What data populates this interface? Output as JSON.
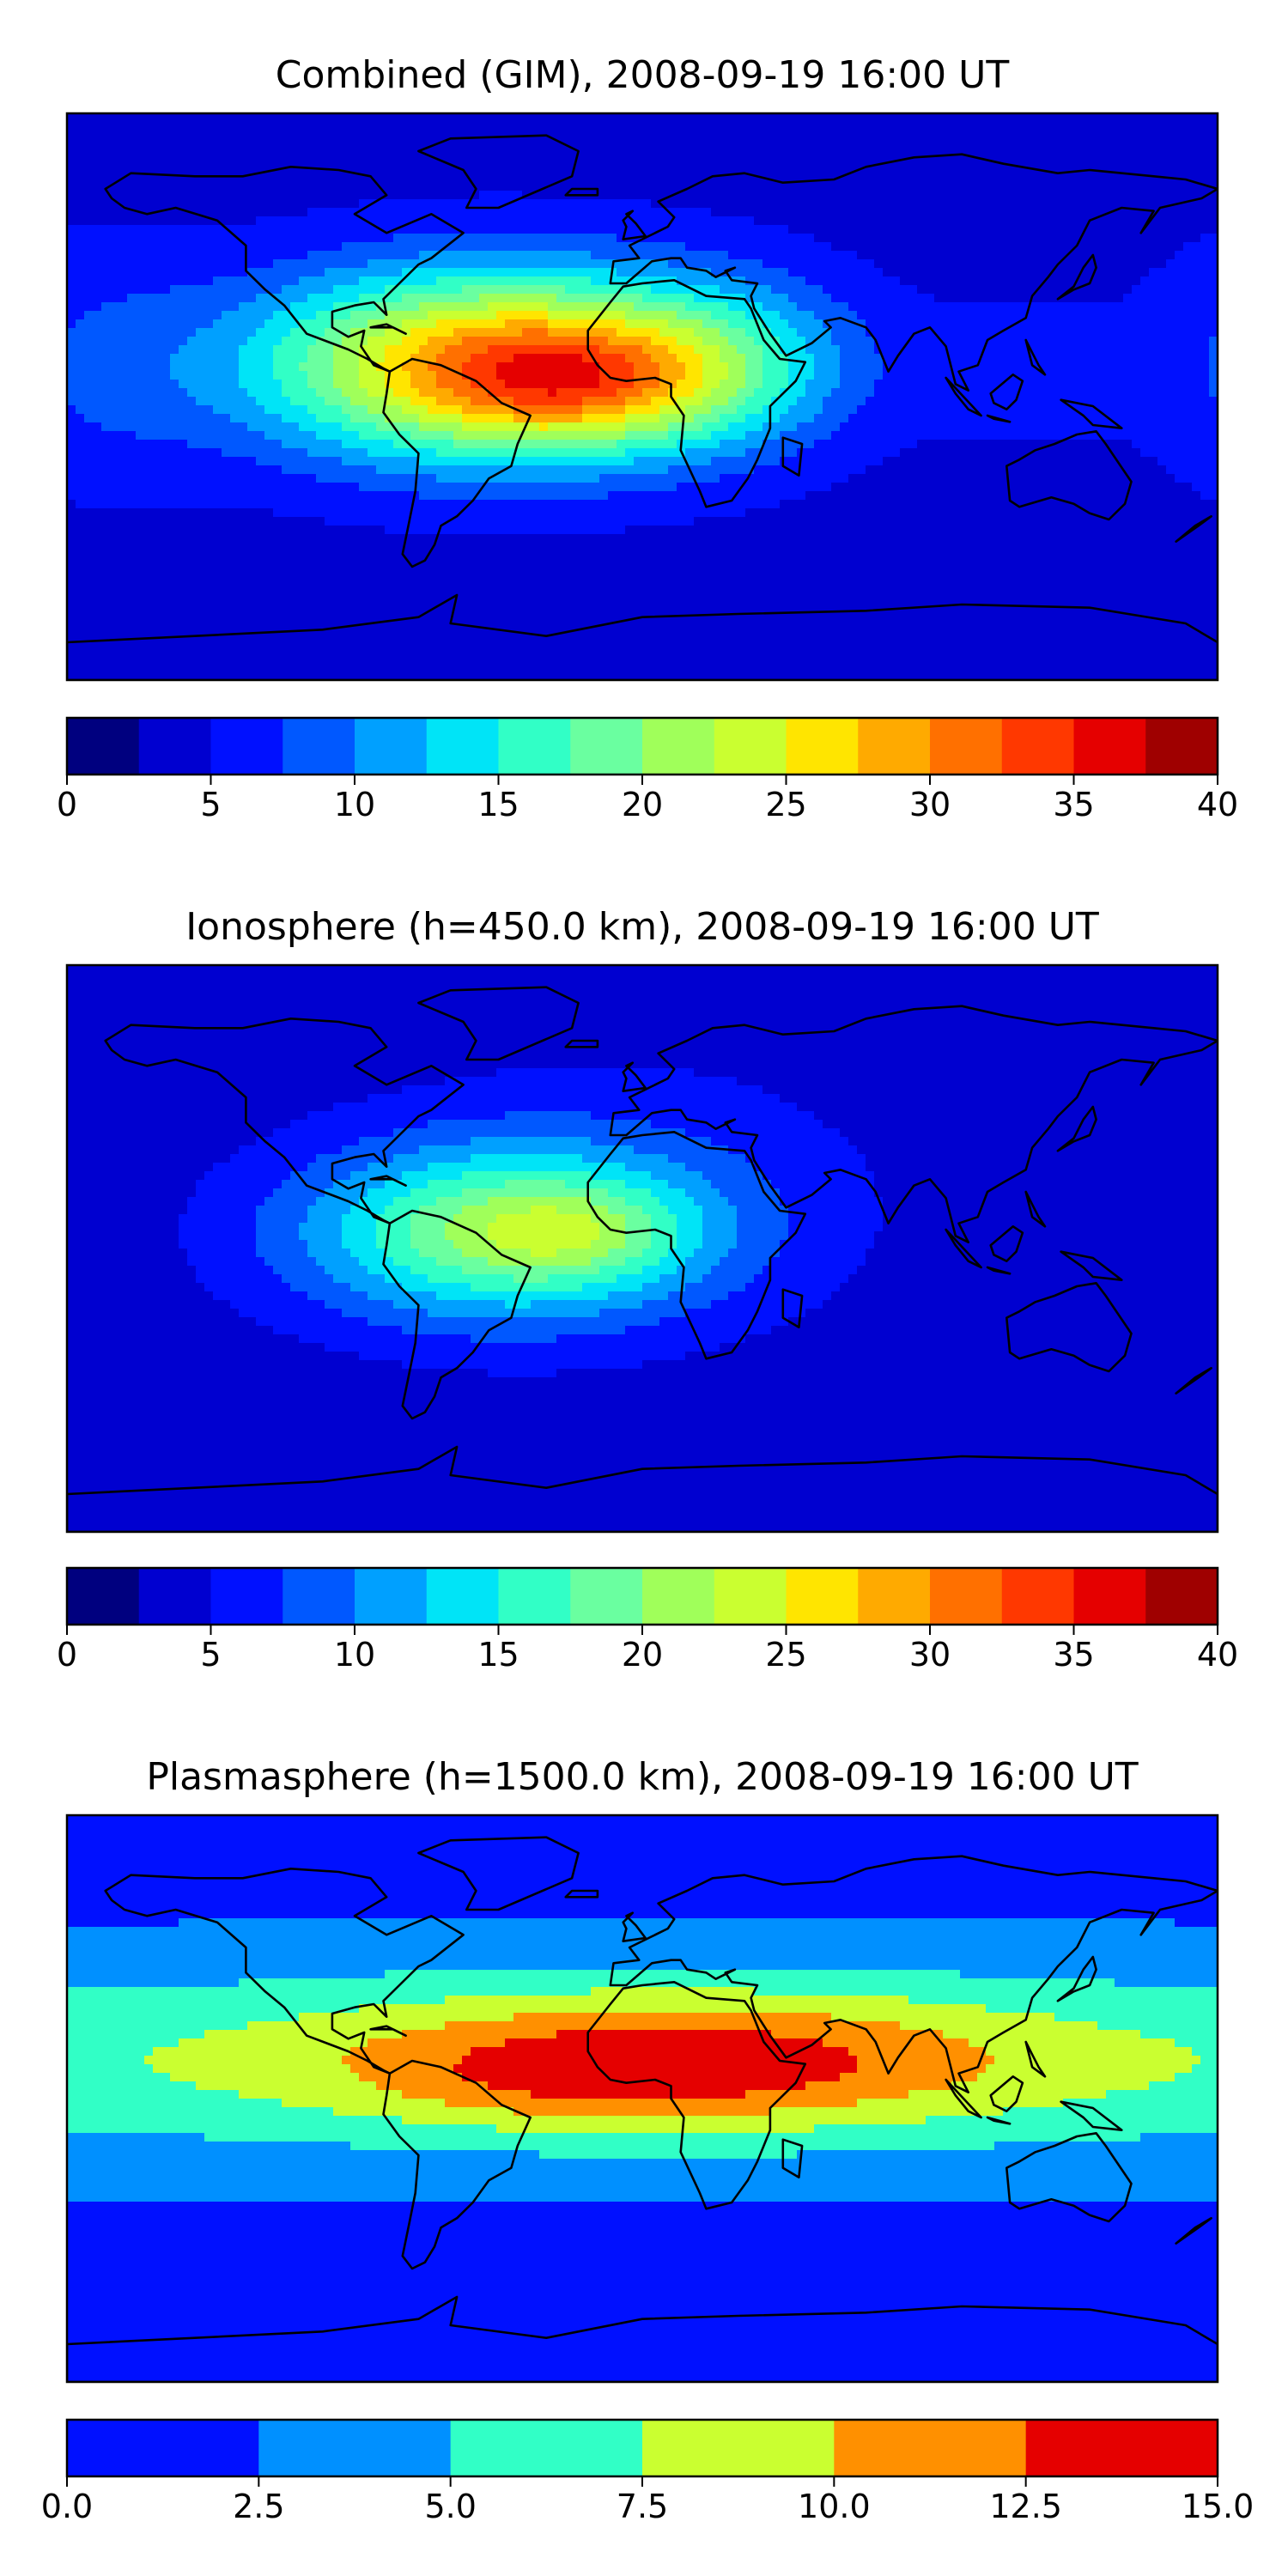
{
  "chart_data": [
    {
      "type": "heatmap",
      "title": "Combined (GIM), 2008-09-19 16:00 UT",
      "colorbar": {
        "levels": [
          0,
          2.5,
          5,
          7.5,
          10,
          12.5,
          15,
          17.5,
          20,
          22.5,
          25,
          27.5,
          30,
          32.5,
          35,
          37.5,
          40
        ],
        "ticks": [
          0,
          5,
          10,
          15,
          20,
          25,
          30,
          35,
          40
        ],
        "tick_labels": [
          "0",
          "5",
          "10",
          "15",
          "20",
          "25",
          "30",
          "35",
          "40"
        ],
        "colors": [
          "#00007f",
          "#0000d0",
          "#0010ff",
          "#0058ff",
          "#00a0ff",
          "#00e4f7",
          "#31ffc6",
          "#6affa0",
          "#a0ff5a",
          "#caff30",
          "#ffe500",
          "#ffaa00",
          "#ff7000",
          "#ff3800",
          "#e50000",
          "#9f0000"
        ]
      },
      "blobs": [
        {
          "lon": -45,
          "lat": 10,
          "value": 26,
          "sx": 75,
          "sy": 30
        },
        {
          "lon": -20,
          "lat": 4,
          "value": 8,
          "sx": 40,
          "sy": 18
        },
        {
          "lon": 25,
          "lat": 10,
          "value": 6,
          "sx": 38,
          "sy": 25
        },
        {
          "lon": 120,
          "lat": 8,
          "value": 3,
          "sx": 30,
          "sy": 20
        },
        {
          "lon": -170,
          "lat": 10,
          "value": 3,
          "sx": 35,
          "sy": 40
        }
      ],
      "background": 4
    },
    {
      "type": "heatmap",
      "title": "Ionosphere  (h=450.0 km), 2008-09-19 16:00 UT",
      "colorbar": {
        "levels": [
          0,
          2.5,
          5,
          7.5,
          10,
          12.5,
          15,
          17.5,
          20,
          22.5,
          25,
          27.5,
          30,
          32.5,
          35,
          37.5,
          40
        ],
        "ticks": [
          0,
          5,
          10,
          15,
          20,
          25,
          30,
          35,
          40
        ],
        "tick_labels": [
          "0",
          "5",
          "10",
          "15",
          "20",
          "25",
          "30",
          "35",
          "40"
        ],
        "colors": [
          "#00007f",
          "#0000d0",
          "#0010ff",
          "#0058ff",
          "#00a0ff",
          "#00e4f7",
          "#31ffc6",
          "#6affa0",
          "#a0ff5a",
          "#caff30",
          "#ffe500",
          "#ffaa00",
          "#ff7000",
          "#ff3800",
          "#e50000",
          "#9f0000"
        ]
      },
      "blobs": [
        {
          "lon": -45,
          "lat": 5,
          "value": 15,
          "sx": 65,
          "sy": 28
        },
        {
          "lon": -20,
          "lat": 5,
          "value": 5,
          "sx": 35,
          "sy": 15
        },
        {
          "lon": 0,
          "lat": 20,
          "value": 2.5,
          "sx": 80,
          "sy": 45
        }
      ],
      "background": 3.5
    },
    {
      "type": "heatmap",
      "title": "Plasmasphere (h=1500.0 km), 2008-09-19 16:00 UT",
      "colorbar": {
        "levels": [
          0,
          2.5,
          5,
          7.5,
          10,
          12.5,
          15
        ],
        "ticks": [
          0,
          2.5,
          5,
          7.5,
          10,
          12.5,
          15
        ],
        "tick_labels": [
          "0.0",
          "2.5",
          "5.0",
          "7.5",
          "10.0",
          "12.5",
          "15.0"
        ],
        "colors": [
          "#0010ff",
          "#0090ff",
          "#31ffc6",
          "#caff30",
          "#ff9000",
          "#e50000"
        ]
      },
      "blobs": [
        {
          "lon": 10,
          "lat": 12,
          "value": 7.5,
          "sx": 110,
          "sy": 22
        },
        {
          "lon": -20,
          "lat": 5,
          "value": 1.5,
          "sx": 55,
          "sy": 12
        }
      ],
      "background": 0,
      "band": {
        "base": 1.5,
        "amp": 5.2,
        "lat_center": 12,
        "lat_width": 34
      }
    }
  ]
}
